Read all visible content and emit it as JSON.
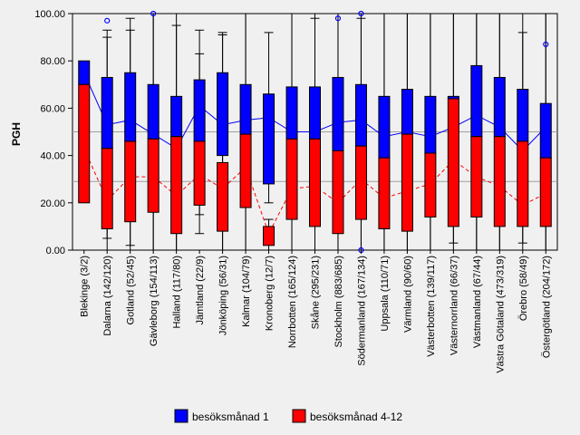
{
  "chart_data": {
    "type": "box",
    "ylabel": "PGH",
    "ylim": [
      0,
      100
    ],
    "yticks": [
      "0.00",
      "20.00",
      "40.00",
      "60.00",
      "80.00",
      "100.00"
    ],
    "reference_lines": [
      50,
      29
    ],
    "categories": [
      "Blekinge (3/2)",
      "Dalarna (142/120)",
      "Gotland (52/45)",
      "Gävleborg (154/113)",
      "Halland (117/80)",
      "Jämtland (22/9)",
      "Jönköping (56/31)",
      "Kalmar (104/79)",
      "Kronoberg (12/7)",
      "Norrbotten (165/124)",
      "Skåne (295/231)",
      "Stockholm (883/685)",
      "Södermanland (167/134)",
      "Uppsala (110/71)",
      "Värmland (90/60)",
      "Västerbotten (139/117)",
      "Västernorrland (66/37)",
      "Västmanland (67/44)",
      "Västra Götaland (473/319)",
      "Örebro (58/49)",
      "Östergötland (204/172)"
    ],
    "series": [
      {
        "name": "besöksmånad 1",
        "color": "#0000ff",
        "boxes": [
          {
            "q1": 70,
            "q3": 80,
            "mean": 75
          },
          {
            "q1": 43,
            "q3": 73,
            "wlo": 5,
            "whi": 93,
            "mean": 53,
            "outliers": [
              97
            ]
          },
          {
            "q1": 46,
            "q3": 75,
            "wlo": 2,
            "whi": 98,
            "mean": 55
          },
          {
            "q1": 47,
            "q3": 70,
            "wlo": 0,
            "whi": 100,
            "mean": 49,
            "outliers": [
              100
            ]
          },
          {
            "q1": 48,
            "q3": 65,
            "wlo": 0,
            "whi": 100,
            "mean": 43
          },
          {
            "q1": 46,
            "q3": 72,
            "wlo": 15,
            "whi": 93,
            "mean": 61
          },
          {
            "q1": 40,
            "q3": 75,
            "wlo": 0,
            "whi": 92,
            "mean": 53
          },
          {
            "q1": 49,
            "q3": 70,
            "wlo": 0,
            "whi": 100,
            "mean": 55
          },
          {
            "q1": 28,
            "q3": 66,
            "wlo": 20,
            "whi": 92,
            "mean": 56
          },
          {
            "q1": 47,
            "q3": 69,
            "wlo": 0,
            "whi": 100,
            "mean": 50
          },
          {
            "q1": 47,
            "q3": 69,
            "wlo": 0,
            "whi": 98,
            "mean": 50
          },
          {
            "q1": 42,
            "q3": 73,
            "wlo": 0,
            "whi": 100,
            "mean": 54,
            "outliers": [
              98
            ]
          },
          {
            "q1": 44,
            "q3": 70,
            "wlo": 0,
            "whi": 98,
            "mean": 55,
            "outliers": [
              0,
              100
            ]
          },
          {
            "q1": 39,
            "q3": 65,
            "wlo": 0,
            "whi": 100,
            "mean": 48
          },
          {
            "q1": 49,
            "q3": 68,
            "wlo": 0,
            "whi": 100,
            "mean": 50
          },
          {
            "q1": 41,
            "q3": 65,
            "wlo": 0,
            "whi": 100,
            "mean": 48
          },
          {
            "q1": 64,
            "q3": 65,
            "wlo": 3,
            "whi": 100,
            "mean": 52
          },
          {
            "q1": 48,
            "q3": 78,
            "wlo": 0,
            "whi": 100,
            "mean": 57
          },
          {
            "q1": 48,
            "q3": 73,
            "wlo": 0,
            "whi": 100,
            "mean": 52
          },
          {
            "q1": 46,
            "q3": 68,
            "wlo": 3,
            "whi": 92,
            "mean": 42
          },
          {
            "q1": 39,
            "q3": 62,
            "wlo": 0,
            "whi": 100,
            "mean": 52,
            "outliers": [
              87
            ]
          }
        ]
      },
      {
        "name": "besöksmånad 4-12",
        "color": "#ff0000",
        "boxes": [
          {
            "q1": 20,
            "q3": 70,
            "mean": 43
          },
          {
            "q1": 9,
            "q3": 43,
            "wlo": 0,
            "whi": 90,
            "mean": 21
          },
          {
            "q1": 12,
            "q3": 46,
            "wlo": 0,
            "whi": 93,
            "mean": 31
          },
          {
            "q1": 16,
            "q3": 47,
            "wlo": 0,
            "whi": 100,
            "mean": 31
          },
          {
            "q1": 7,
            "q3": 48,
            "wlo": 0,
            "whi": 95,
            "mean": 23
          },
          {
            "q1": 19,
            "q3": 46,
            "wlo": 7,
            "whi": 83,
            "mean": 32
          },
          {
            "q1": 8,
            "q3": 37,
            "wlo": 0,
            "whi": 91,
            "mean": 26
          },
          {
            "q1": 18,
            "q3": 49,
            "wlo": 0,
            "whi": 100,
            "mean": 35
          },
          {
            "q1": 2,
            "q3": 10,
            "wlo": 0,
            "whi": 13,
            "mean": 7
          },
          {
            "q1": 13,
            "q3": 47,
            "wlo": 0,
            "whi": 100,
            "mean": 26
          },
          {
            "q1": 10,
            "q3": 47,
            "wlo": 0,
            "whi": 100,
            "mean": 27
          },
          {
            "q1": 7,
            "q3": 42,
            "wlo": 0,
            "whi": 100,
            "mean": 20
          },
          {
            "q1": 13,
            "q3": 44,
            "wlo": 0,
            "whi": 100,
            "mean": 30
          },
          {
            "q1": 9,
            "q3": 39,
            "wlo": 0,
            "whi": 100,
            "mean": 22
          },
          {
            "q1": 8,
            "q3": 49,
            "wlo": 0,
            "whi": 100,
            "mean": 25
          },
          {
            "q1": 14,
            "q3": 41,
            "wlo": 0,
            "whi": 100,
            "mean": 28
          },
          {
            "q1": 10,
            "q3": 64,
            "wlo": 0,
            "whi": 100,
            "mean": 38
          },
          {
            "q1": 14,
            "q3": 48,
            "wlo": 0,
            "whi": 100,
            "mean": 31
          },
          {
            "q1": 10,
            "q3": 48,
            "wlo": 0,
            "whi": 100,
            "mean": 27
          },
          {
            "q1": 10,
            "q3": 46,
            "wlo": 0,
            "whi": 100,
            "mean": 19
          },
          {
            "q1": 10,
            "q3": 39,
            "wlo": 0,
            "whi": 100,
            "mean": 24
          }
        ]
      }
    ],
    "legend_position": "bottom",
    "grid": false
  }
}
